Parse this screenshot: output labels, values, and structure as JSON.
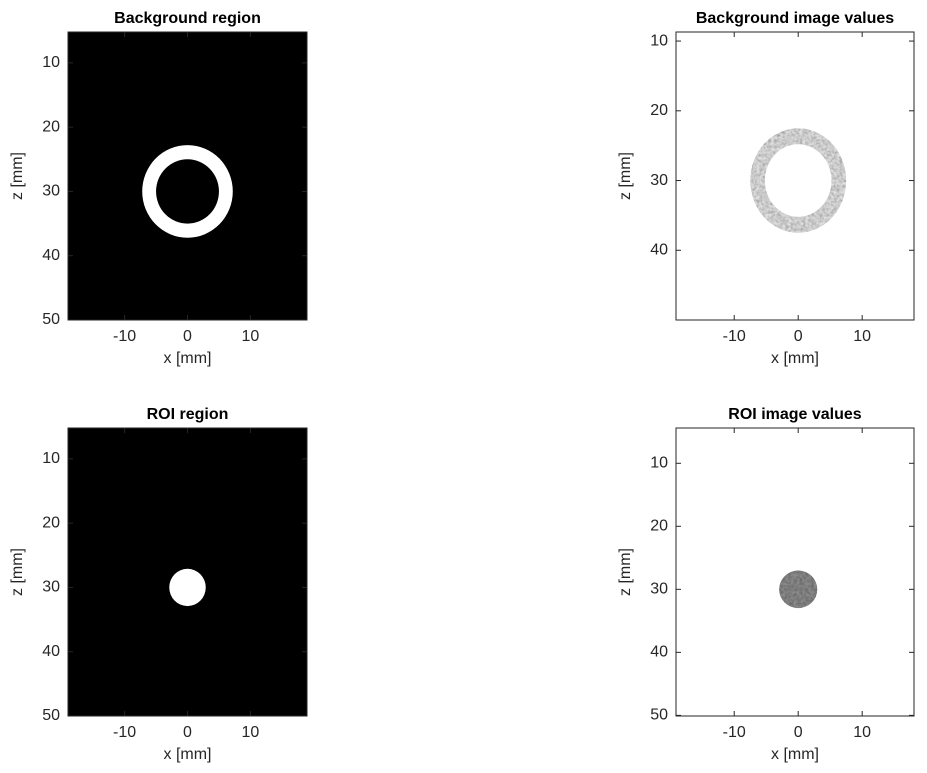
{
  "chart_data": [
    {
      "type": "image",
      "title": "Background region",
      "xlabel": "x [mm]",
      "ylabel": "z [mm]",
      "xlim": [
        -19,
        19
      ],
      "ylim": [
        5.2,
        50
      ],
      "xticks": [
        -10,
        0,
        10
      ],
      "yticks": [
        10,
        20,
        30,
        40,
        50
      ],
      "background": "#000000",
      "color": "#ffffff",
      "texture": false,
      "region": {
        "type": "ring",
        "center": [
          0,
          30
        ],
        "radii": [
          5,
          7.2
        ]
      }
    },
    {
      "type": "image",
      "title": "Background image values",
      "xlabel": "x [mm]",
      "ylabel": "z [mm]",
      "xlim": [
        -19.1,
        18.1
      ],
      "ylim": [
        8.7,
        50
      ],
      "xticks": [
        -10,
        0,
        10
      ],
      "yticks": [
        10,
        20,
        30,
        40
      ],
      "background": "#ffffff",
      "color": "#e0e0e0",
      "texture": true,
      "region": {
        "type": "ring",
        "center": [
          0,
          30
        ],
        "radii": [
          5.2,
          7.5
        ]
      }
    },
    {
      "type": "image",
      "title": "ROI region",
      "xlabel": "x [mm]",
      "ylabel": "z [mm]",
      "xlim": [
        -19,
        19
      ],
      "ylim": [
        5.2,
        50
      ],
      "xticks": [
        -10,
        0,
        10
      ],
      "yticks": [
        10,
        20,
        30,
        40,
        50
      ],
      "background": "#000000",
      "color": "#ffffff",
      "texture": false,
      "region": {
        "type": "disk",
        "center": [
          0,
          30
        ],
        "radii": [
          2.9
        ]
      }
    },
    {
      "type": "image",
      "title": "ROI image values",
      "xlabel": "x [mm]",
      "ylabel": "z [mm]",
      "xlim": [
        -19.1,
        18.1
      ],
      "ylim": [
        4.4,
        50.1
      ],
      "xticks": [
        -10,
        0,
        10
      ],
      "yticks": [
        10,
        20,
        30,
        40,
        50
      ],
      "background": "#ffffff",
      "color": "#8a8a8a",
      "texture": true,
      "region": {
        "type": "disk",
        "center": [
          0,
          30
        ],
        "radii": [
          3
        ]
      }
    }
  ]
}
